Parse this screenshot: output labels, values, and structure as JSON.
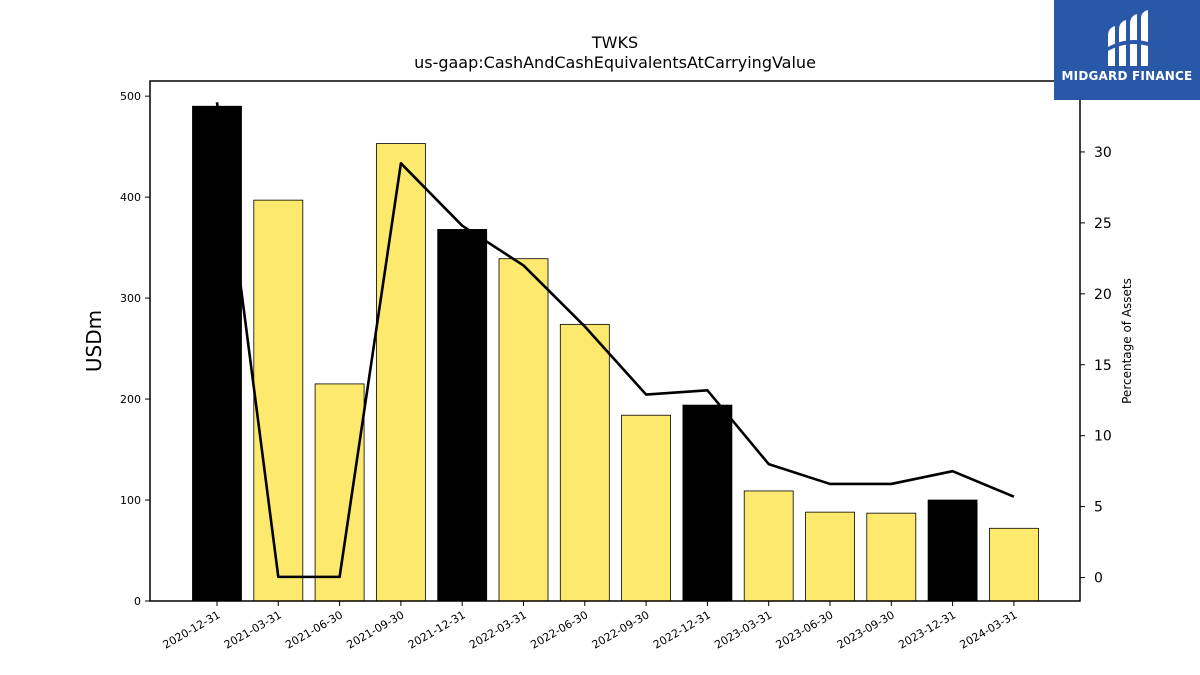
{
  "chart_data": {
    "type": "bar",
    "title": "TWKS",
    "subtitle": "us-gaap:CashAndCashEquivalentsAtCarryingValue",
    "ylabel": "USDm",
    "y2label": "Percentage of Assets",
    "categories": [
      "2020-12-31",
      "2021-03-31",
      "2021-06-30",
      "2021-09-30",
      "2021-12-31",
      "2022-03-31",
      "2022-06-30",
      "2022-09-30",
      "2022-12-31",
      "2023-03-31",
      "2023-06-30",
      "2023-09-30",
      "2023-12-31",
      "2024-03-31"
    ],
    "values": [
      490,
      397,
      215,
      453,
      368,
      339,
      274,
      184,
      194,
      109,
      88,
      87,
      100,
      72
    ],
    "bar_colors": [
      "#000000",
      "#fde96d",
      "#fde96d",
      "#fde96d",
      "#000000",
      "#fde96d",
      "#fde96d",
      "#fde96d",
      "#000000",
      "#fde96d",
      "#fde96d",
      "#fde96d",
      "#000000",
      "#fde96d"
    ],
    "line_series": {
      "name": "Percentage of Assets",
      "values": [
        33.5,
        0.05,
        0.05,
        29.2,
        24.8,
        22.0,
        17.7,
        12.9,
        13.2,
        8.0,
        6.6,
        6.6,
        7.5,
        5.7
      ]
    },
    "ylim": [
      0,
      515
    ],
    "y2lim": [
      -1.65,
      35
    ],
    "yticks": [
      0,
      100,
      200,
      300,
      400,
      500
    ],
    "y2ticks": [
      0,
      5,
      10,
      15,
      20,
      25,
      30
    ],
    "grid": false
  },
  "logo": {
    "name": "MIDGARD FINANCE",
    "bg_color": "#2a58a8"
  }
}
